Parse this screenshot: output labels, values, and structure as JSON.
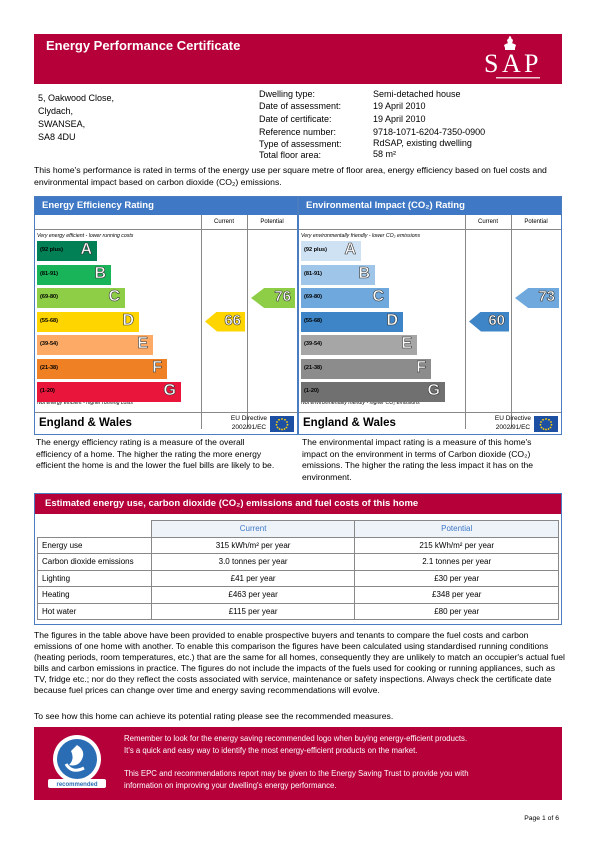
{
  "header": {
    "title": "Energy Performance Certificate"
  },
  "address": [
    "5, Oakwood Close,",
    "Clydach,",
    "SWANSEA,",
    "SA8 4DU"
  ],
  "info": [
    {
      "label": "Dwelling type:",
      "value": "Semi-detached house"
    },
    {
      "label": "Date of assessment:",
      "value": "19 April 2010"
    },
    {
      "label": "Date of certificate:",
      "value": "19 April 2010"
    },
    {
      "label": "Reference number:",
      "value": "9718-1071-6204-7350-0900"
    },
    {
      "label": "Type of assessment:",
      "value": "RdSAP, existing dwelling"
    },
    {
      "label": "Total floor area:",
      "value": "58 m²"
    }
  ],
  "intro": "This home's performance is rated in terms of the energy use per square metre of floor area, energy efficiency based on fuel costs and environmental impact based on carbon dioxide (CO₂) emissions.",
  "eer": {
    "title": "Energy Efficiency Rating",
    "current_label": "Current",
    "potential_label": "Potential",
    "top_note": "Very energy efficient - lower running costs",
    "bottom_note": "Not energy efficient - higher running costs",
    "bands": [
      {
        "range": "(92 plus)",
        "letter": "A",
        "color": "#008054"
      },
      {
        "range": "(81-91)",
        "letter": "B",
        "color": "#19b459"
      },
      {
        "range": "(69-80)",
        "letter": "C",
        "color": "#8dce46"
      },
      {
        "range": "(55-68)",
        "letter": "D",
        "color": "#ffd500"
      },
      {
        "range": "(39-54)",
        "letter": "E",
        "color": "#fcaa65"
      },
      {
        "range": "(21-38)",
        "letter": "F",
        "color": "#ef8023"
      },
      {
        "range": "(1-20)",
        "letter": "G",
        "color": "#e9153b"
      }
    ],
    "current": 66,
    "potential": 76,
    "current_color": "#ffd500",
    "potential_color": "#8dce46",
    "region": "England & Wales",
    "directive": [
      "EU Directive",
      "2002/91/EC"
    ],
    "description": "The energy efficiency rating is a measure of the overall efficiency of a home. The higher the rating the more energy efficient the home is and the lower the fuel bills are likely to be."
  },
  "eir": {
    "title": "Environmental Impact (CO₂) Rating",
    "current_label": "Current",
    "potential_label": "Potential",
    "top_note": "Very environmentally friendly - lower CO₂ emissions",
    "bottom_note": "Not environmentally friendly - higher CO₂ emissions",
    "bands": [
      {
        "range": "(92 plus)",
        "letter": "A",
        "color": "#cfe2f3"
      },
      {
        "range": "(81-91)",
        "letter": "B",
        "color": "#9fc5e8"
      },
      {
        "range": "(69-80)",
        "letter": "C",
        "color": "#6fa8dc"
      },
      {
        "range": "(55-68)",
        "letter": "D",
        "color": "#3d85c6"
      },
      {
        "range": "(39-54)",
        "letter": "E",
        "color": "#a6a6a6"
      },
      {
        "range": "(21-38)",
        "letter": "F",
        "color": "#8c8c8c"
      },
      {
        "range": "(1-20)",
        "letter": "G",
        "color": "#707070"
      }
    ],
    "current": 60,
    "potential": 73,
    "current_color": "#3d85c6",
    "potential_color": "#6fa8dc",
    "region": "England & Wales",
    "directive": [
      "EU Directive",
      "2002/91/EC"
    ],
    "description": "The environmental impact rating is a measure of this home's impact on the environment in terms of Carbon dioxide (CO₂) emissions. The higher the rating the less impact it has on the environment."
  },
  "estimate": {
    "title": "Estimated energy use, carbon dioxide (CO₂) emissions and fuel costs of this home",
    "col_current": "Current",
    "col_potential": "Potential",
    "rows": [
      {
        "label": "Energy use",
        "current": "315 kWh/m² per year",
        "potential": "215 kWh/m² per year"
      },
      {
        "label": "Carbon dioxide emissions",
        "current": "3.0 tonnes per year",
        "potential": "2.1 tonnes per year"
      },
      {
        "label": "Lighting",
        "current": "£41 per year",
        "potential": "£30 per year"
      },
      {
        "label": "Heating",
        "current": "£463 per year",
        "potential": "£348 per year"
      },
      {
        "label": "Hot water",
        "current": "£115 per year",
        "potential": "£80 per year"
      }
    ]
  },
  "explanation": "The figures in the table above have been provided to enable prospective buyers and tenants to compare the fuel costs and carbon emissions of one home with another. To enable this comparison the figures have been calculated using standardised running conditions (heating periods, room temperatures, etc.) that are the same for all homes, consequently they are unlikely to match an occupier's actual fuel bills and carbon emissions in practice. The figures do not include the impacts of the fuels used for cooking or running appliances, such as TV, fridge etc.; nor do they reflect the costs associated with service, maintenance or safety inspections. Always check the certificate date because fuel prices can change over time and energy saving recommendations will evolve.",
  "see_recs": "To see how this home can achieve its potential rating please see the recommended measures.",
  "energy_saving": {
    "line1": "Remember to look for the energy saving recommended logo when buying energy-efficient products.",
    "line2": "It's a quick and easy way to identify the most energy-efficient products on the market.",
    "line3": "This EPC and recommendations report may be given to the Energy Saving Trust to provide you with",
    "line4": "information on improving your dwelling's energy performance."
  },
  "page": "Page 1 of 6"
}
